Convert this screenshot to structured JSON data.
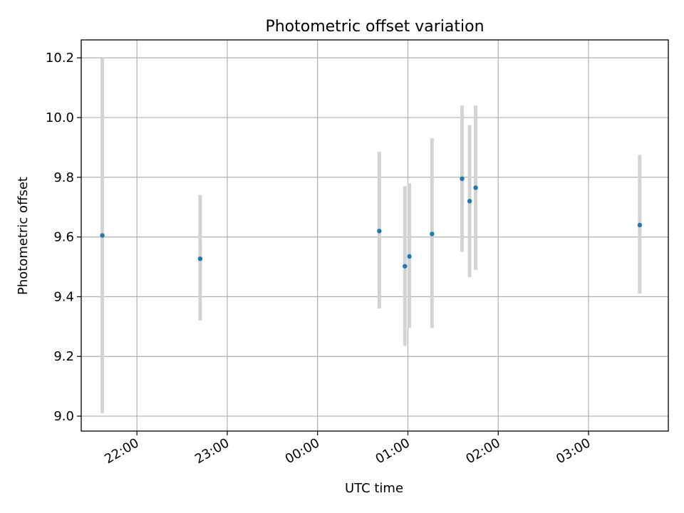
{
  "chart_data": {
    "type": "scatter",
    "title": "Photometric offset variation",
    "xlabel": "UTC time",
    "ylabel": "Photometric offset",
    "x_ticks": [
      "22:00",
      "23:00",
      "00:00",
      "01:00",
      "02:00",
      "03:00"
    ],
    "y_ticks": [
      "9.0",
      "9.2",
      "9.4",
      "9.6",
      "9.8",
      "10.0",
      "10.2"
    ],
    "y_tick_values": [
      9.0,
      9.2,
      9.4,
      9.6,
      9.8,
      10.0,
      10.2
    ],
    "ylim": [
      8.95,
      10.26
    ],
    "xlim": [
      "21:23",
      "03:53"
    ],
    "grid": true,
    "colors": {
      "point": "#1f77b4",
      "errorbar": "#d3d3d3",
      "grid": "#b0b0b0"
    },
    "series": [
      {
        "points": [
          {
            "x": "21:37",
            "y": 9.605,
            "low": 9.01,
            "high": 10.2
          },
          {
            "x": "22:42",
            "y": 9.527,
            "low": 9.32,
            "high": 9.74
          },
          {
            "x": "00:41",
            "y": 9.62,
            "low": 9.36,
            "high": 9.885
          },
          {
            "x": "00:58",
            "y": 9.502,
            "low": 9.235,
            "high": 9.77
          },
          {
            "x": "01:01",
            "y": 9.535,
            "low": 9.295,
            "high": 9.78
          },
          {
            "x": "01:16",
            "y": 9.61,
            "low": 9.295,
            "high": 9.93
          },
          {
            "x": "01:36",
            "y": 9.795,
            "low": 9.55,
            "high": 10.04
          },
          {
            "x": "01:41",
            "y": 9.72,
            "low": 9.465,
            "high": 9.975
          },
          {
            "x": "01:45",
            "y": 9.765,
            "low": 9.49,
            "high": 10.04
          },
          {
            "x": "03:34",
            "y": 9.64,
            "low": 9.41,
            "high": 9.875
          }
        ]
      }
    ]
  }
}
